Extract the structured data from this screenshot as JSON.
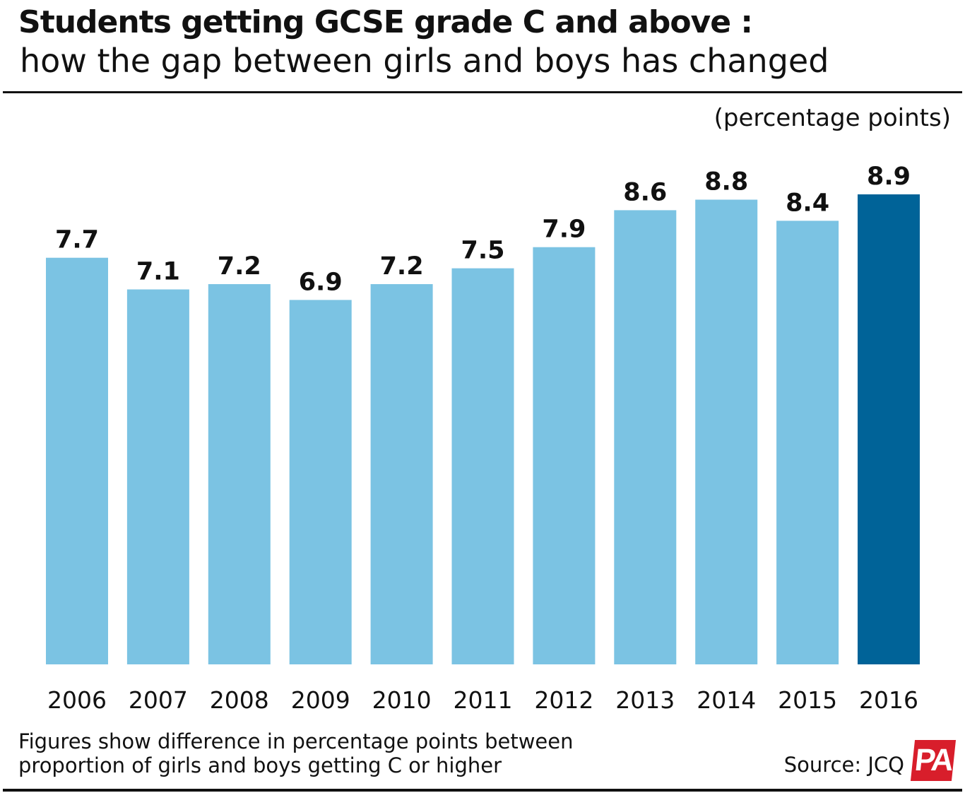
{
  "header": {
    "title": "Students getting GCSE grade C and above :",
    "subtitle": "how the gap between girls and boys has changed",
    "unit_label": "(percentage points)"
  },
  "footer": {
    "footnote_line1": "Figures show difference in percentage points between",
    "footnote_line2": "proportion of girls and boys getting C or higher",
    "source": "Source: JCQ",
    "logo_text": "PA"
  },
  "colors": {
    "bar": "#7bc3e3",
    "highlight_bar": "#006398",
    "text": "#111111",
    "logo": "#d81e2b"
  },
  "chart_data": {
    "type": "bar",
    "title": "Students getting GCSE grade C and above : how the gap between girls and boys has changed",
    "ylabel": "(percentage points)",
    "xlabel": "",
    "categories": [
      "2006",
      "2007",
      "2008",
      "2009",
      "2010",
      "2011",
      "2012",
      "2013",
      "2014",
      "2015",
      "2016"
    ],
    "values": [
      7.7,
      7.1,
      7.2,
      6.9,
      7.2,
      7.5,
      7.9,
      8.6,
      8.8,
      8.4,
      8.9
    ],
    "value_labels": [
      "7.7",
      "7.1",
      "7.2",
      "6.9",
      "7.2",
      "7.5",
      "7.9",
      "8.6",
      "8.8",
      "8.4",
      "8.9"
    ],
    "highlight": "2016",
    "ylim": [
      0,
      8.9
    ],
    "grid": false,
    "legend": "none"
  }
}
